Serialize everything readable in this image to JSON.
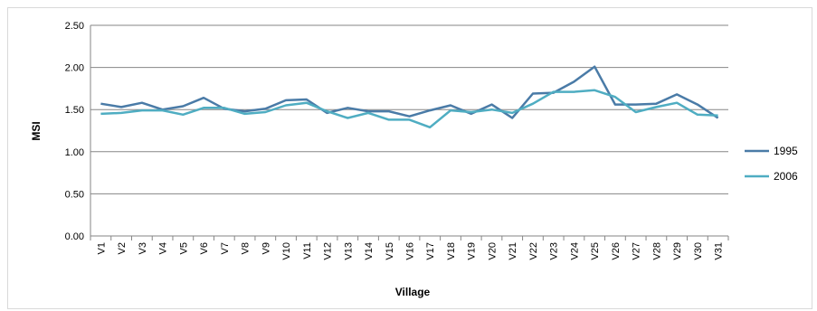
{
  "chart_data": {
    "type": "line",
    "title": "",
    "xlabel": "Village",
    "ylabel": "MSI",
    "ylim": [
      0,
      2.5
    ],
    "yticks": [
      "0.00",
      "0.50",
      "1.00",
      "1.50",
      "2.00",
      "2.50"
    ],
    "grid": "horizontal",
    "legend": "right",
    "categories": [
      "V1",
      "V2",
      "V3",
      "V4",
      "V5",
      "V6",
      "V7",
      "V8",
      "V9",
      "V10",
      "V11",
      "V12",
      "V13",
      "V14",
      "V15",
      "V16",
      "V17",
      "V18",
      "V19",
      "V20",
      "V21",
      "V22",
      "V23",
      "V24",
      "V25",
      "V26",
      "V27",
      "V28",
      "V29",
      "V30",
      "V31"
    ],
    "series": [
      {
        "name": "1995",
        "color": "#4a7ba7",
        "values": [
          1.57,
          1.53,
          1.58,
          1.5,
          1.54,
          1.64,
          1.51,
          1.48,
          1.51,
          1.61,
          1.62,
          1.46,
          1.52,
          1.48,
          1.48,
          1.42,
          1.49,
          1.55,
          1.45,
          1.56,
          1.4,
          1.69,
          1.7,
          1.83,
          2.01,
          1.56,
          1.56,
          1.57,
          1.68,
          1.56,
          1.4
        ]
      },
      {
        "name": "2006",
        "color": "#4fadc2",
        "values": [
          1.45,
          1.46,
          1.49,
          1.49,
          1.44,
          1.52,
          1.52,
          1.45,
          1.47,
          1.55,
          1.58,
          1.48,
          1.4,
          1.46,
          1.38,
          1.38,
          1.29,
          1.49,
          1.47,
          1.5,
          1.46,
          1.57,
          1.71,
          1.71,
          1.73,
          1.65,
          1.47,
          1.53,
          1.58,
          1.44,
          1.43
        ]
      }
    ]
  }
}
